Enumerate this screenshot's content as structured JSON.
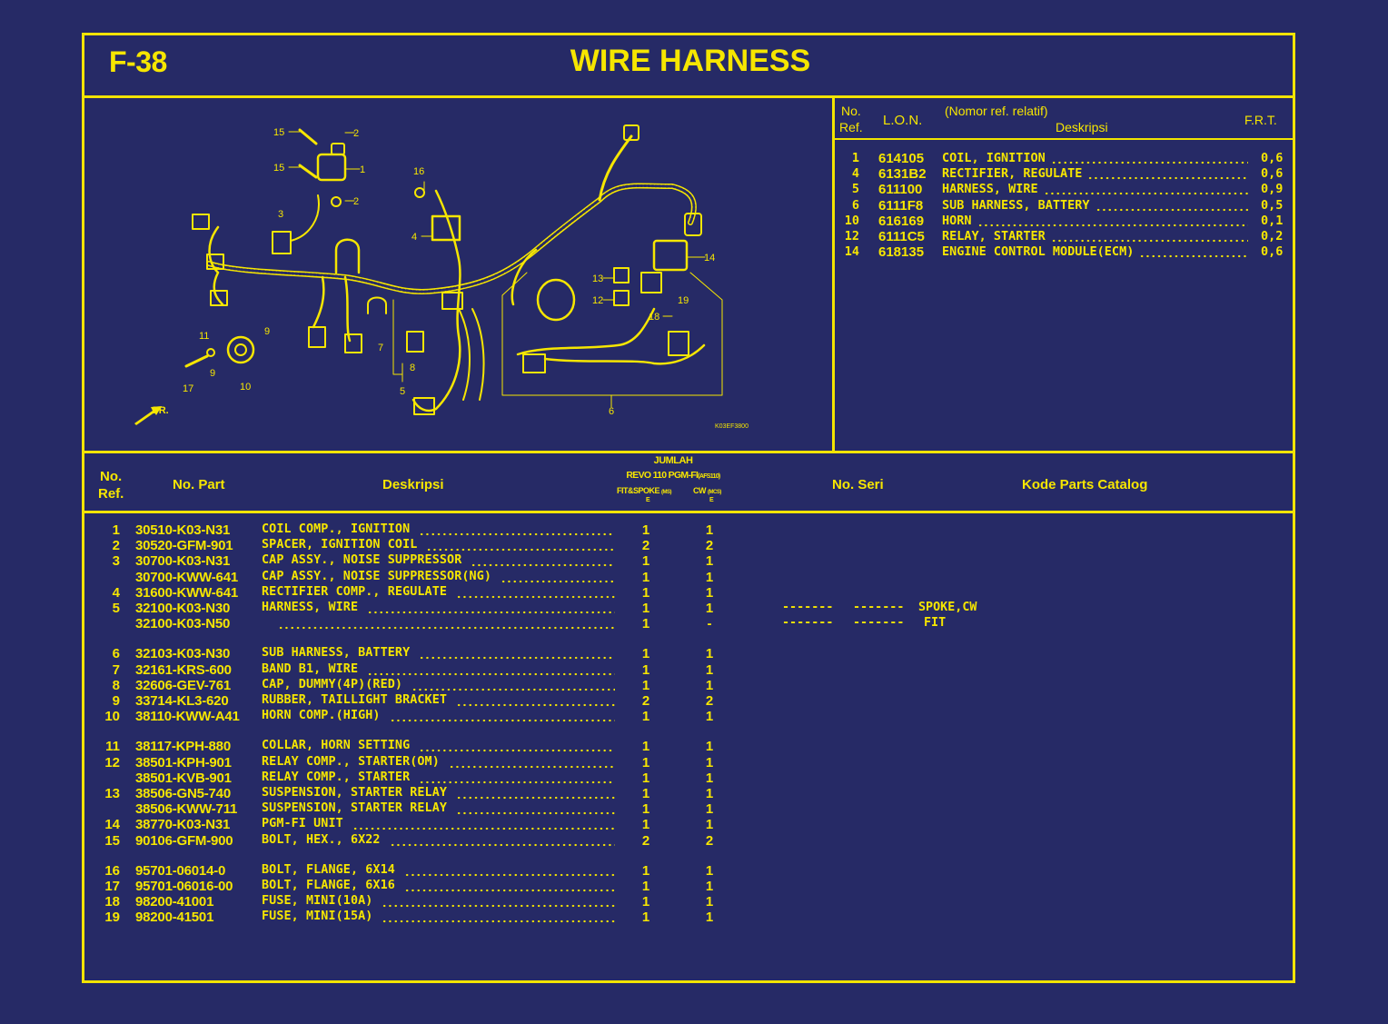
{
  "header": {
    "code": "F-38",
    "title": "WIRE HARNESS"
  },
  "diagram": {
    "callouts": [
      "15",
      "2",
      "15",
      "1",
      "2",
      "3",
      "16",
      "4",
      "14",
      "13",
      "12",
      "19",
      "18",
      "11",
      "9",
      "7",
      "8",
      "9",
      "17",
      "10",
      "5",
      "6"
    ],
    "front_label": "FR.",
    "drawing_code": "K03EF3800"
  },
  "lon_table": {
    "headers": {
      "no": "No.",
      "ref": "Ref.",
      "lon": "L.O.N.",
      "nomor": "(Nomor ref. relatif)",
      "deskripsi": "Deskripsi",
      "frt": "F.R.T."
    },
    "rows": [
      {
        "ref": "1",
        "lon": "614105",
        "desc": "COIL, IGNITION",
        "frt": "0,6"
      },
      {
        "ref": "4",
        "lon": "6131B2",
        "desc": "RECTIFIER, REGULATE",
        "frt": "0,6"
      },
      {
        "ref": "5",
        "lon": "611100",
        "desc": "HARNESS, WIRE",
        "frt": "0,9"
      },
      {
        "ref": "6",
        "lon": "6111F8",
        "desc": "SUB HARNESS, BATTERY",
        "frt": "0,5"
      },
      {
        "ref": "10",
        "lon": "616169",
        "desc": "HORN",
        "frt": "0,1"
      },
      {
        "ref": "12",
        "lon": "6111C5",
        "desc": "RELAY, STARTER",
        "frt": "0,2"
      },
      {
        "ref": "14",
        "lon": "618135",
        "desc": "ENGINE CONTROL MODULE(ECM)",
        "frt": "0,6"
      }
    ]
  },
  "parts_table": {
    "headers": {
      "no": "No.",
      "ref": "Ref.",
      "part": "No. Part",
      "desc": "Deskripsi",
      "jumlah": "JUMLAH",
      "model": "REVO 110 PGM-FI",
      "model_code": "(AFS110)",
      "col1": "FIT&SPOKE",
      "col1_code": "(MS)",
      "col2": "CW",
      "col2_code": "(MCS)",
      "col1_sub": "E",
      "col2_sub": "E",
      "serial": "No. Seri",
      "catalog": "Kode Parts Catalog"
    },
    "groups": [
      [
        {
          "ref": "1",
          "part": "30510-K03-N31",
          "desc": "COIL COMP., IGNITION",
          "q1": "1",
          "q2": "1"
        },
        {
          "ref": "2",
          "part": "30520-GFM-901",
          "desc": "SPACER, IGNITION COIL",
          "q1": "2",
          "q2": "2"
        },
        {
          "ref": "3",
          "part": "30700-K03-N31",
          "desc": "CAP ASSY., NOISE SUPPRESSOR",
          "q1": "1",
          "q2": "1"
        },
        {
          "ref": "",
          "part": "30700-KWW-641",
          "desc": "CAP ASSY., NOISE SUPPRESSOR(NG)",
          "q1": "1",
          "q2": "1"
        },
        {
          "ref": "4",
          "part": "31600-KWW-641",
          "desc": "RECTIFIER COMP., REGULATE",
          "q1": "1",
          "q2": "1"
        },
        {
          "ref": "5",
          "part": "32100-K03-N30",
          "desc": "HARNESS, WIRE",
          "q1": "1",
          "q2": "1",
          "serial1": "-------",
          "serial2": "-------",
          "catalog": "SPOKE,CW"
        },
        {
          "ref": "",
          "part": "32100-K03-N50",
          "desc": "",
          "q1": "1",
          "q2": "-",
          "serial1": "-------",
          "serial2": "-------",
          "catalog": "FIT"
        }
      ],
      [
        {
          "ref": "6",
          "part": "32103-K03-N30",
          "desc": "SUB HARNESS, BATTERY",
          "q1": "1",
          "q2": "1"
        },
        {
          "ref": "7",
          "part": "32161-KRS-600",
          "desc": "BAND B1, WIRE",
          "q1": "1",
          "q2": "1"
        },
        {
          "ref": "8",
          "part": "32606-GEV-761",
          "desc": "CAP, DUMMY(4P)(RED)",
          "q1": "1",
          "q2": "1"
        },
        {
          "ref": "9",
          "part": "33714-KL3-620",
          "desc": "RUBBER, TAILLIGHT BRACKET",
          "q1": "2",
          "q2": "2"
        },
        {
          "ref": "10",
          "part": "38110-KWW-A41",
          "desc": "HORN COMP.(HIGH)",
          "q1": "1",
          "q2": "1"
        }
      ],
      [
        {
          "ref": "11",
          "part": "38117-KPH-880",
          "desc": "COLLAR, HORN SETTING",
          "q1": "1",
          "q2": "1"
        },
        {
          "ref": "12",
          "part": "38501-KPH-901",
          "desc": "RELAY COMP., STARTER(OM)",
          "q1": "1",
          "q2": "1"
        },
        {
          "ref": "",
          "part": "38501-KVB-901",
          "desc": "RELAY COMP., STARTER",
          "q1": "1",
          "q2": "1"
        },
        {
          "ref": "13",
          "part": "38506-GN5-740",
          "desc": "SUSPENSION, STARTER RELAY",
          "q1": "1",
          "q2": "1"
        },
        {
          "ref": "",
          "part": "38506-KWW-711",
          "desc": "SUSPENSION, STARTER RELAY",
          "q1": "1",
          "q2": "1"
        },
        {
          "ref": "14",
          "part": "38770-K03-N31",
          "desc": "PGM-FI UNIT",
          "q1": "1",
          "q2": "1"
        },
        {
          "ref": "15",
          "part": "90106-GFM-900",
          "desc": "BOLT, HEX., 6X22",
          "q1": "2",
          "q2": "2"
        }
      ],
      [
        {
          "ref": "16",
          "part": "95701-06014-0",
          "desc": "BOLT, FLANGE, 6X14",
          "q1": "1",
          "q2": "1"
        },
        {
          "ref": "17",
          "part": "95701-06016-00",
          "desc": "BOLT, FLANGE, 6X16",
          "q1": "1",
          "q2": "1"
        },
        {
          "ref": "18",
          "part": "98200-41001",
          "desc": "FUSE, MINI(10A)",
          "q1": "1",
          "q2": "1"
        },
        {
          "ref": "19",
          "part": "98200-41501",
          "desc": "FUSE, MINI(15A)",
          "q1": "1",
          "q2": "1"
        }
      ]
    ]
  },
  "colors": {
    "background": "#262a66",
    "ink": "#f6e600"
  }
}
